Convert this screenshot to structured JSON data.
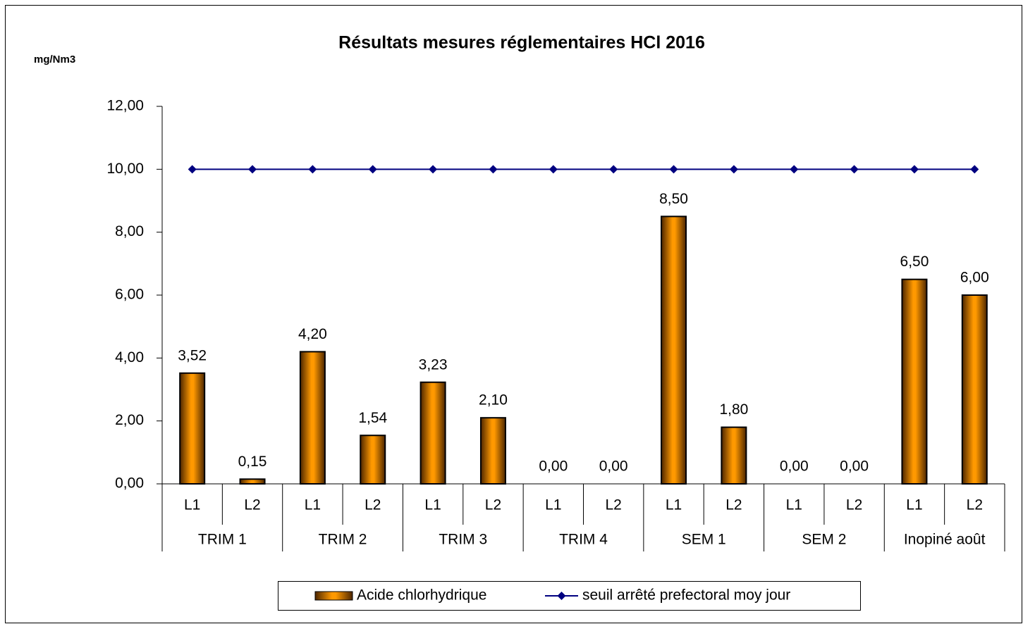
{
  "chart_data": {
    "type": "bar",
    "title": "Résultats mesures réglementaires HCl 2016",
    "y_label": "mg/Nm3",
    "categories": [
      "L1",
      "L2",
      "L1",
      "L2",
      "L1",
      "L2",
      "L1",
      "L2",
      "L1",
      "L2",
      "L1",
      "L2",
      "L1",
      "L2"
    ],
    "category_groups": [
      "TRIM 1",
      "TRIM 2",
      "TRIM 3",
      "TRIM 4",
      "SEM 1",
      "SEM 2",
      "Inopiné août"
    ],
    "series": [
      {
        "name": "Acide chlorhydrique",
        "type": "bar",
        "color": "#ff9900",
        "values": [
          3.52,
          0.15,
          4.2,
          1.54,
          3.23,
          2.1,
          0,
          0,
          8.5,
          1.8,
          0,
          0,
          6.5,
          6
        ],
        "value_labels": [
          "3,52",
          "0,15",
          "4,20",
          "1,54",
          "3,23",
          "2,10",
          "0,00",
          "0,00",
          "8,50",
          "1,80",
          "0,00",
          "0,00",
          "6,50",
          "6,00"
        ]
      },
      {
        "name": "seuil arrêté prefectoral moy jour",
        "type": "line",
        "color": "#000080",
        "values": [
          10,
          10,
          10,
          10,
          10,
          10,
          10,
          10,
          10,
          10,
          10,
          10,
          10,
          10
        ]
      }
    ],
    "ylim": [
      0,
      12
    ],
    "yticks": [
      {
        "value": 0,
        "label": "0,00"
      },
      {
        "value": 2,
        "label": "2,00"
      },
      {
        "value": 4,
        "label": "4,00"
      },
      {
        "value": 6,
        "label": "6,00"
      },
      {
        "value": 8,
        "label": "8,00"
      },
      {
        "value": 10,
        "label": "10,00"
      },
      {
        "value": 12,
        "label": "12,00"
      }
    ],
    "grid": false,
    "legend": "bottom"
  }
}
